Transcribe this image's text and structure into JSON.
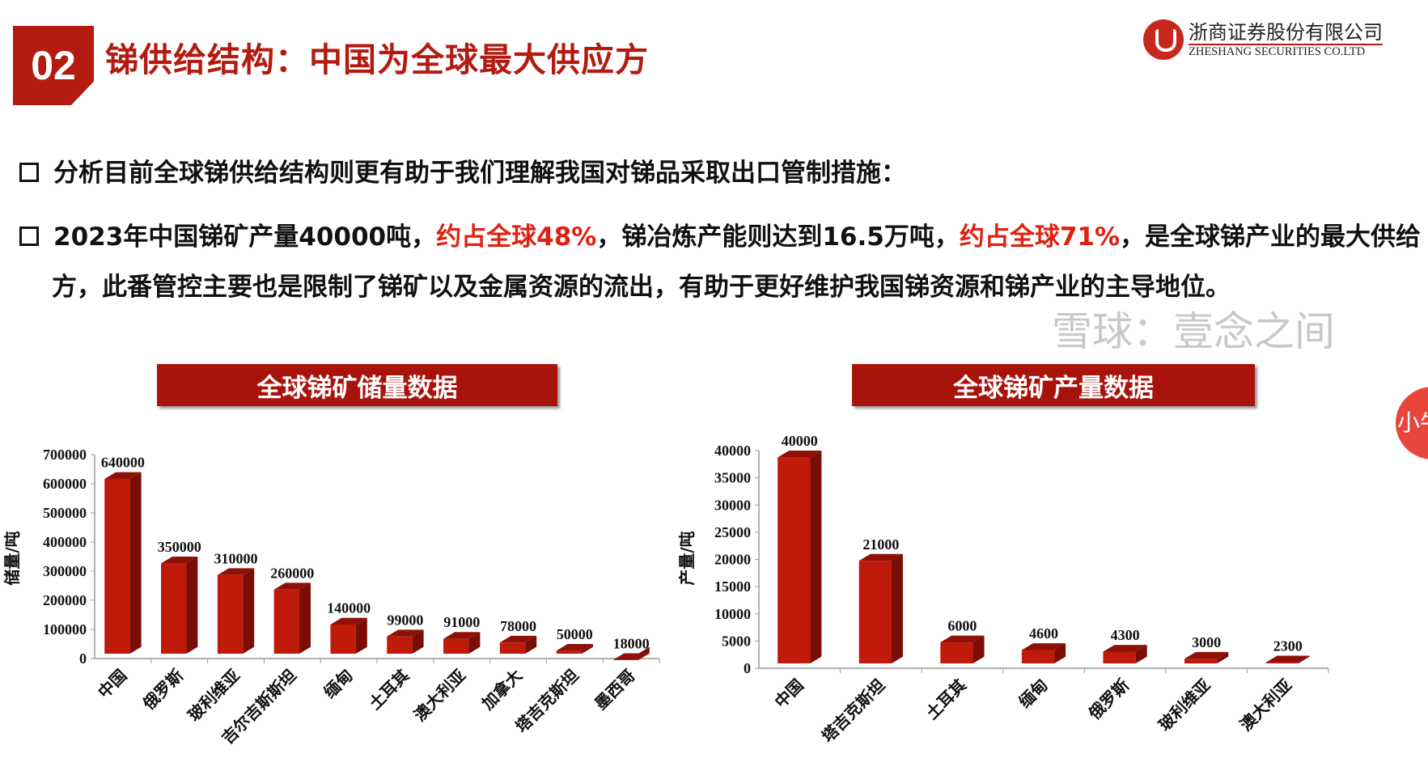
{
  "header": {
    "section_number": "02",
    "title": "锑供给结构：中国为全球最大供应方",
    "logo": {
      "cn": "浙商证券股份有限公司",
      "en": "ZHESHANG SECURITIES CO.LTD"
    }
  },
  "bullets": [
    {
      "segments": [
        {
          "text": "分析目前全球锑供给结构则更有助于我们理解我国对锑品采取出口管制措施：",
          "red": false
        }
      ]
    },
    {
      "segments": [
        {
          "text": "2023年中国锑矿产量40000吨，",
          "red": false
        },
        {
          "text": "约占全球48%",
          "red": true
        },
        {
          "text": "，锑冶炼产能则达到16.5万吨，",
          "red": false
        },
        {
          "text": "约占全球71%",
          "red": true
        },
        {
          "text": "，是全球锑产业的最大供给方，此番管控主要也是限制了锑矿以及金属资源的流出，有助于更好维护我国锑资源和锑产业的主导地位。",
          "red": false
        }
      ]
    }
  ],
  "watermark": "雪球：壹念之间",
  "side_widget": "小牛",
  "chart_data": [
    {
      "type": "bar",
      "title": "全球锑矿储量数据",
      "ylabel": "储量/吨",
      "ylim": [
        0,
        700000
      ],
      "yticks": [
        0,
        100000,
        200000,
        300000,
        400000,
        500000,
        600000,
        700000
      ],
      "categories": [
        "中国",
        "俄罗斯",
        "玻利维亚",
        "吉尔吉斯斯坦",
        "缅甸",
        "土耳其",
        "澳大利亚",
        "加拿大",
        "塔吉克斯坦",
        "墨西哥"
      ],
      "values": [
        640000,
        350000,
        310000,
        260000,
        140000,
        99000,
        91000,
        78000,
        50000,
        18000
      ],
      "color": "#c01a0a"
    },
    {
      "type": "bar",
      "title": "全球锑矿产量数据",
      "ylabel": "产量/吨",
      "ylim": [
        0,
        40000
      ],
      "yticks": [
        0,
        5000,
        10000,
        15000,
        20000,
        25000,
        30000,
        35000,
        40000
      ],
      "categories": [
        "中国",
        "塔吉克斯坦",
        "土耳其",
        "缅甸",
        "俄罗斯",
        "玻利维亚",
        "澳大利亚"
      ],
      "values": [
        40000,
        21000,
        6000,
        4600,
        4300,
        3000,
        2300
      ],
      "color": "#c01a0a"
    }
  ]
}
